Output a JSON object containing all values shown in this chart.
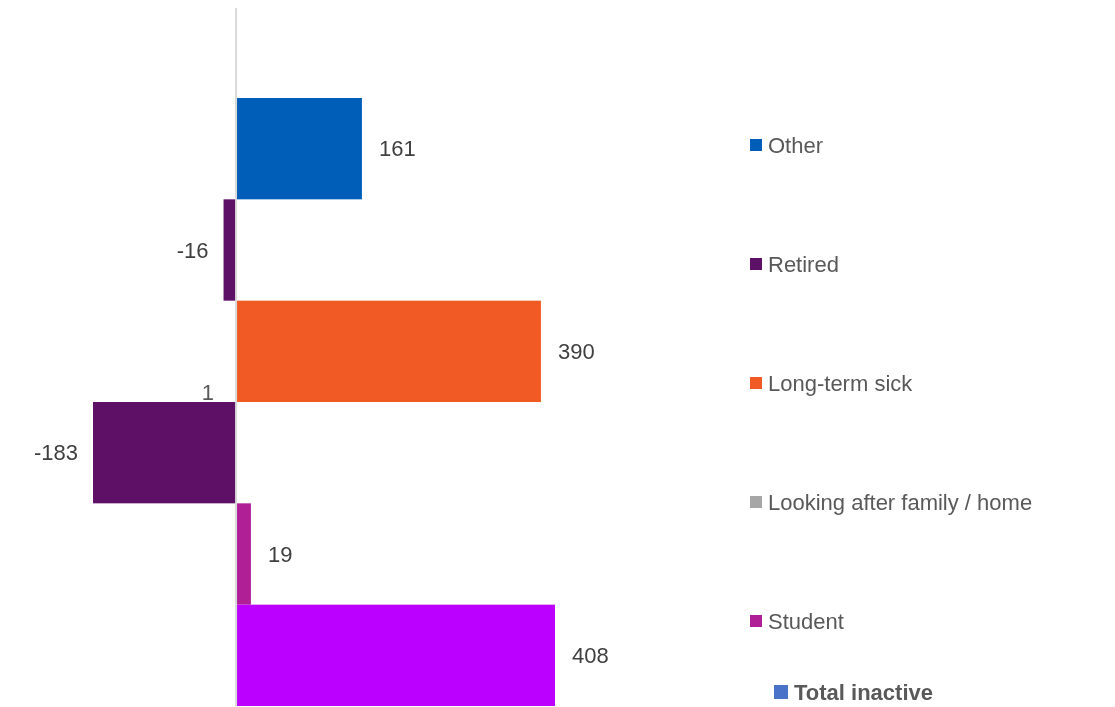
{
  "chart_data": {
    "type": "bar",
    "orientation": "horizontal",
    "categories": [
      null
    ],
    "series": [
      {
        "name": "Other",
        "color": "#005eb8",
        "values": [
          161
        ]
      },
      {
        "name": "Retired",
        "color": "#5c1066",
        "values": [
          -16
        ]
      },
      {
        "name": "Long-term sick",
        "color": "#f15a24",
        "values": [
          390
        ]
      },
      {
        "name": "Looking after family / home",
        "color": "#a6a6a6",
        "colors": [
          "#5e0f66"
        ],
        "values": [
          -183
        ]
      },
      {
        "name": "Student",
        "color": "#b01f96",
        "values": [
          19
        ]
      },
      {
        "name": "Total inactive",
        "color": "#4a72c8",
        "colors": [
          "#bb00ff"
        ],
        "values": [
          408
        ]
      }
    ],
    "tick_labels": false,
    "data_labels": true,
    "legend": "right",
    "grid": false,
    "annotations": [
      "1"
    ]
  }
}
